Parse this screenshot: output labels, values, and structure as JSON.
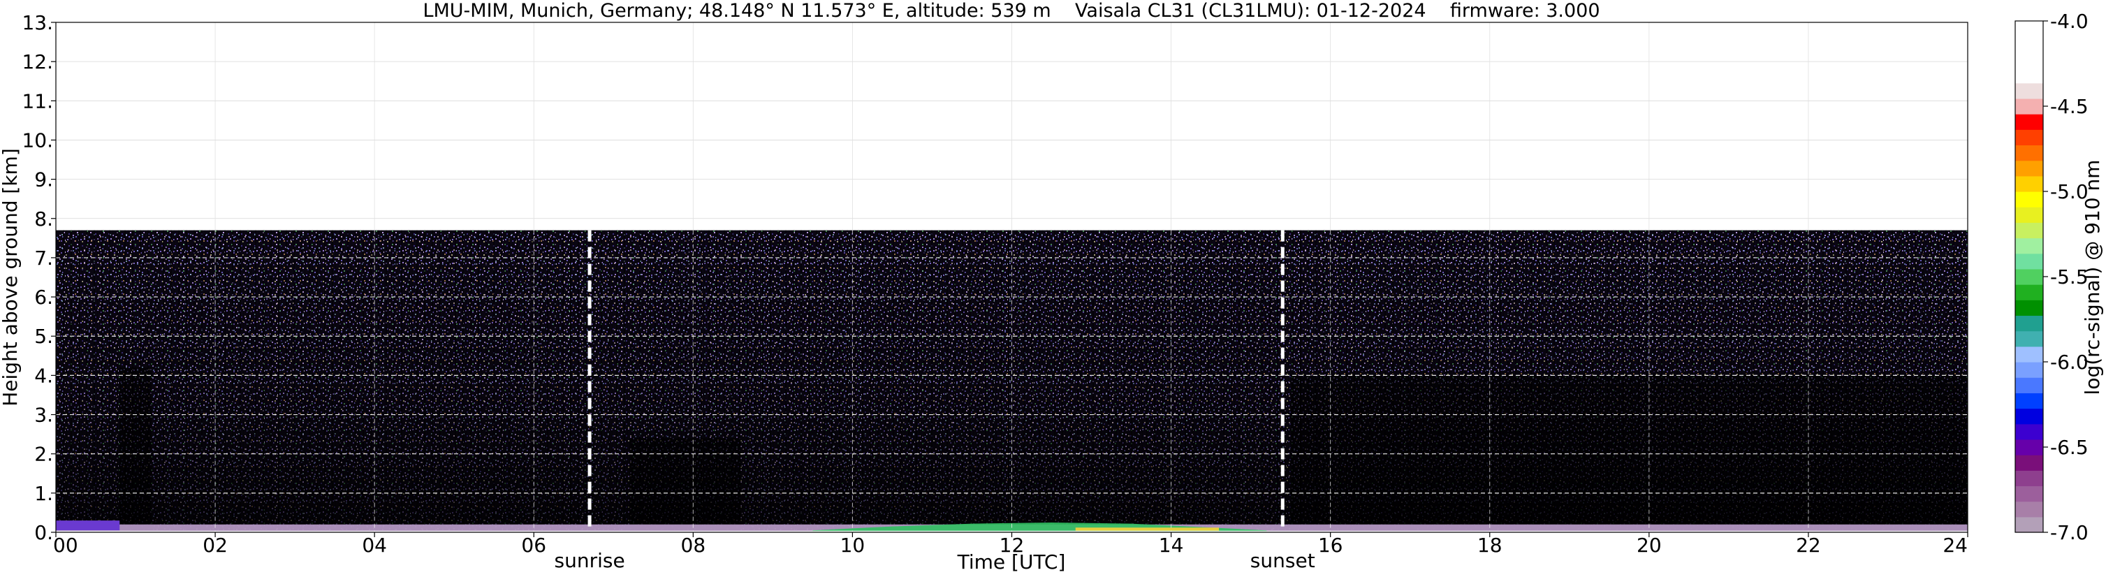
{
  "chart_data": {
    "type": "heatmap",
    "title": "LMU-MIM, Munich, Germany; 48.148° N 11.573° E, altitude: 539 m    Vaisala CL31 (CL31LMU): 01-12-2024    firmware: 3.000",
    "xlabel": "Time [UTC]",
    "ylabel": "Height above ground [km]",
    "xlim": [
      0,
      24
    ],
    "ylim": [
      0,
      13
    ],
    "x_ticks": [
      "00",
      "02",
      "04",
      "06",
      "08",
      "10",
      "12",
      "14",
      "16",
      "18",
      "20",
      "22",
      "24"
    ],
    "y_ticks": [
      "0.",
      "1.",
      "2.",
      "3.",
      "4.",
      "5.",
      "6.",
      "7.",
      "8.",
      "9.",
      "10.",
      "11.",
      "12.",
      "13."
    ],
    "grid": true,
    "signal_top_km": 7.7,
    "sunrise": {
      "label": "sunrise",
      "hour": 6.7
    },
    "sunset": {
      "label": "sunset",
      "hour": 15.4
    },
    "colorbar": {
      "label": "log(rc-signal) @ 910 nm",
      "range": [
        -7.0,
        -4.0
      ],
      "ticks": [
        "-4.0",
        "-4.5",
        "-5.0",
        "-5.5",
        "-6.0",
        "-6.5",
        "-7.0"
      ],
      "colors": [
        "#b3a0b8",
        "#a87fa8",
        "#9c5f9c",
        "#8e3f8e",
        "#7a0f7a",
        "#6600aa",
        "#3c00d0",
        "#0000e0",
        "#0040ff",
        "#4a78ff",
        "#7aa0ff",
        "#9fc0ff",
        "#40b0b0",
        "#20a090",
        "#009000",
        "#20b020",
        "#50d060",
        "#70e0a0",
        "#a0f0a0",
        "#c8f060",
        "#e8f020",
        "#ffff00",
        "#ffd000",
        "#ffa000",
        "#ff7000",
        "#ff4000",
        "#ff0000",
        "#f4b0b0",
        "#eedede",
        "#ffffff",
        "#ffffff",
        "#ffffff",
        "#ffffff"
      ]
    }
  }
}
